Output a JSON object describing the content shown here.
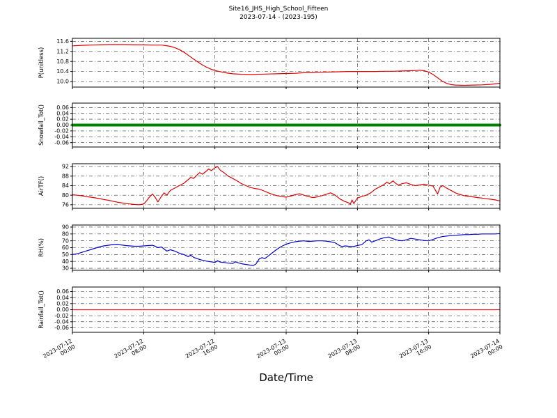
{
  "header": {
    "title": "Site16_JHS_High_School_Fifteen",
    "subtitle": "2023-07-14 - (2023-195)"
  },
  "chart_data": {
    "type": "line",
    "title": "Site16_JHS_High_School_Fifteen",
    "subtitle": "2023-07-14 - (2023-195)",
    "xlabel": "Date/Time",
    "x_unit": "hours since 2023-07-12 00:00",
    "xlim": [
      0,
      48
    ],
    "x_ticks": [
      0,
      8,
      16,
      24,
      32,
      40,
      48
    ],
    "x_tick_labels": [
      [
        "2023-07-12",
        "00:00"
      ],
      [
        "2023-07-12",
        "08:00"
      ],
      [
        "2023-07-12",
        "16:00"
      ],
      [
        "2023-07-13",
        "00:00"
      ],
      [
        "2023-07-13",
        "08:00"
      ],
      [
        "2023-07-13",
        "16:00"
      ],
      [
        "2023-07-14",
        "00:00"
      ]
    ],
    "grid": true,
    "panels": [
      {
        "ylabel": "P(unitless)",
        "color": "#dd0000",
        "linewidth": 1.2,
        "ylim": [
          9.78,
          11.72
        ],
        "yticks": [
          10.0,
          10.4,
          10.8,
          11.2,
          11.6
        ],
        "tick_decimals": 1,
        "points": [
          [
            0,
            11.42
          ],
          [
            1,
            11.44
          ],
          [
            2,
            11.45
          ],
          [
            3,
            11.46
          ],
          [
            4,
            11.47
          ],
          [
            5,
            11.47
          ],
          [
            6,
            11.47
          ],
          [
            7,
            11.46
          ],
          [
            8,
            11.46
          ],
          [
            9,
            11.45
          ],
          [
            10,
            11.45
          ],
          [
            10.5,
            11.43
          ],
          [
            11,
            11.4
          ],
          [
            11.5,
            11.35
          ],
          [
            12,
            11.27
          ],
          [
            12.5,
            11.17
          ],
          [
            13,
            11.05
          ],
          [
            13.5,
            10.92
          ],
          [
            14,
            10.8
          ],
          [
            14.5,
            10.68
          ],
          [
            15,
            10.58
          ],
          [
            15.5,
            10.5
          ],
          [
            16,
            10.44
          ],
          [
            17,
            10.36
          ],
          [
            18,
            10.31
          ],
          [
            19,
            10.29
          ],
          [
            20,
            10.28
          ],
          [
            21,
            10.29
          ],
          [
            22,
            10.3
          ],
          [
            23,
            10.31
          ],
          [
            24,
            10.32
          ],
          [
            25,
            10.33
          ],
          [
            26,
            10.35
          ],
          [
            27,
            10.36
          ],
          [
            28,
            10.37
          ],
          [
            29,
            10.38
          ],
          [
            30,
            10.39
          ],
          [
            31,
            10.4
          ],
          [
            32,
            10.4
          ],
          [
            33,
            10.4
          ],
          [
            34,
            10.4
          ],
          [
            35,
            10.41
          ],
          [
            36,
            10.41
          ],
          [
            37,
            10.42
          ],
          [
            38,
            10.43
          ],
          [
            38.5,
            10.44
          ],
          [
            39,
            10.45
          ],
          [
            39.5,
            10.43
          ],
          [
            40,
            10.38
          ],
          [
            40.5,
            10.28
          ],
          [
            41,
            10.15
          ],
          [
            41.5,
            10.02
          ],
          [
            42,
            9.93
          ],
          [
            42.5,
            9.88
          ],
          [
            43,
            9.86
          ],
          [
            44,
            9.85
          ],
          [
            45,
            9.86
          ],
          [
            46,
            9.87
          ],
          [
            47,
            9.89
          ],
          [
            48,
            9.93
          ]
        ]
      },
      {
        "ylabel": "Snowfall_Tot()",
        "color": "#008000",
        "linewidth": 4,
        "ylim": [
          -0.075,
          0.075
        ],
        "yticks": [
          -0.06,
          -0.04,
          -0.02,
          0.0,
          0.02,
          0.04,
          0.06
        ],
        "tick_decimals": 2,
        "points": [
          [
            0,
            0
          ],
          [
            48,
            0
          ]
        ]
      },
      {
        "ylabel": "AirTF()",
        "color": "#dd0000",
        "linewidth": 1.2,
        "ylim": [
          74.5,
          93.2
        ],
        "yticks": [
          76,
          80,
          84,
          88,
          92
        ],
        "tick_decimals": 0,
        "points": [
          [
            0,
            80.2
          ],
          [
            0.5,
            80.0
          ],
          [
            1,
            79.8
          ],
          [
            1.5,
            79.4
          ],
          [
            2,
            79.2
          ],
          [
            2.5,
            78.9
          ],
          [
            3,
            78.6
          ],
          [
            3.5,
            78.2
          ],
          [
            4,
            77.9
          ],
          [
            4.5,
            77.5
          ],
          [
            5,
            77.1
          ],
          [
            5.5,
            76.8
          ],
          [
            6,
            76.5
          ],
          [
            6.5,
            76.3
          ],
          [
            7,
            76.1
          ],
          [
            7.5,
            76.0
          ],
          [
            8,
            76.3
          ],
          [
            8.3,
            77.5
          ],
          [
            8.6,
            79.0
          ],
          [
            9,
            80.5
          ],
          [
            9.3,
            79.0
          ],
          [
            9.6,
            77.2
          ],
          [
            10,
            79.5
          ],
          [
            10.3,
            81.0
          ],
          [
            10.6,
            80.0
          ],
          [
            11,
            82.0
          ],
          [
            11.5,
            83.0
          ],
          [
            12,
            84.0
          ],
          [
            12.5,
            85.0
          ],
          [
            13,
            86.5
          ],
          [
            13.3,
            87.5
          ],
          [
            13.6,
            87.0
          ],
          [
            14,
            88.5
          ],
          [
            14.3,
            89.5
          ],
          [
            14.6,
            88.8
          ],
          [
            15,
            90.0
          ],
          [
            15.3,
            91.0
          ],
          [
            15.6,
            90.3
          ],
          [
            16,
            91.5
          ],
          [
            16.3,
            92.0
          ],
          [
            16.6,
            90.5
          ],
          [
            17,
            89.5
          ],
          [
            17.5,
            88.0
          ],
          [
            18,
            87.0
          ],
          [
            18.5,
            86.0
          ],
          [
            19,
            84.8
          ],
          [
            19.5,
            84.0
          ],
          [
            20,
            83.2
          ],
          [
            20.5,
            82.8
          ],
          [
            21,
            82.5
          ],
          [
            21.5,
            81.8
          ],
          [
            22,
            81.0
          ],
          [
            22.5,
            80.3
          ],
          [
            23,
            79.8
          ],
          [
            23.5,
            79.4
          ],
          [
            24,
            79.2
          ],
          [
            24.5,
            79.6
          ],
          [
            25,
            80.2
          ],
          [
            25.5,
            80.6
          ],
          [
            26,
            80.0
          ],
          [
            26.5,
            79.4
          ],
          [
            27,
            79.0
          ],
          [
            27.5,
            79.3
          ],
          [
            28,
            79.8
          ],
          [
            28.5,
            80.4
          ],
          [
            29,
            81.0
          ],
          [
            29.5,
            80.0
          ],
          [
            30,
            78.5
          ],
          [
            30.5,
            77.5
          ],
          [
            31,
            76.8
          ],
          [
            31.2,
            76.2
          ],
          [
            31.4,
            78.0
          ],
          [
            31.6,
            76.5
          ],
          [
            32,
            78.8
          ],
          [
            32.5,
            79.5
          ],
          [
            33,
            80.0
          ],
          [
            33.5,
            81.0
          ],
          [
            34,
            82.5
          ],
          [
            34.5,
            83.5
          ],
          [
            35,
            84.5
          ],
          [
            35.3,
            85.5
          ],
          [
            35.6,
            84.8
          ],
          [
            36,
            86.0
          ],
          [
            36.3,
            85.0
          ],
          [
            36.6,
            84.2
          ],
          [
            37,
            84.8
          ],
          [
            37.5,
            85.2
          ],
          [
            38,
            84.5
          ],
          [
            38.5,
            84.0
          ],
          [
            39,
            84.3
          ],
          [
            39.5,
            84.6
          ],
          [
            40,
            84.2
          ],
          [
            40.5,
            83.8
          ],
          [
            41,
            80.5
          ],
          [
            41.3,
            83.5
          ],
          [
            41.6,
            84.0
          ],
          [
            42,
            83.0
          ],
          [
            42.5,
            82.0
          ],
          [
            43,
            81.0
          ],
          [
            43.5,
            80.3
          ],
          [
            44,
            79.8
          ],
          [
            44.5,
            79.5
          ],
          [
            45,
            79.3
          ],
          [
            45.5,
            79.0
          ],
          [
            46,
            78.8
          ],
          [
            46.5,
            78.5
          ],
          [
            47,
            78.3
          ],
          [
            47.5,
            78.0
          ],
          [
            48,
            77.6
          ]
        ]
      },
      {
        "ylabel": "RH(%)",
        "color": "#0000cc",
        "linewidth": 1.2,
        "ylim": [
          27,
          93
        ],
        "yticks": [
          30,
          40,
          50,
          60,
          70,
          80,
          90
        ],
        "tick_decimals": 0,
        "points": [
          [
            0,
            50
          ],
          [
            0.5,
            51
          ],
          [
            1,
            53
          ],
          [
            1.5,
            55
          ],
          [
            2,
            57
          ],
          [
            2.5,
            59
          ],
          [
            3,
            61
          ],
          [
            3.5,
            62.5
          ],
          [
            4,
            63.5
          ],
          [
            4.5,
            64.5
          ],
          [
            5,
            65
          ],
          [
            5.5,
            64
          ],
          [
            6,
            63
          ],
          [
            6.5,
            62.5
          ],
          [
            7,
            62
          ],
          [
            7.5,
            62
          ],
          [
            8,
            62.5
          ],
          [
            8.5,
            63
          ],
          [
            9,
            63.5
          ],
          [
            9.3,
            62
          ],
          [
            9.6,
            60
          ],
          [
            10,
            61
          ],
          [
            10.3,
            58
          ],
          [
            10.6,
            55
          ],
          [
            11,
            57
          ],
          [
            11.5,
            55
          ],
          [
            12,
            52
          ],
          [
            12.5,
            50
          ],
          [
            13,
            47
          ],
          [
            13.3,
            49
          ],
          [
            13.6,
            46
          ],
          [
            14,
            44
          ],
          [
            14.5,
            42
          ],
          [
            15,
            40.5
          ],
          [
            15.5,
            39.5
          ],
          [
            16,
            38.5
          ],
          [
            16.3,
            41
          ],
          [
            16.6,
            39
          ],
          [
            17,
            38.5
          ],
          [
            17.5,
            37.5
          ],
          [
            18,
            37
          ],
          [
            18.3,
            39.5
          ],
          [
            18.6,
            38
          ],
          [
            19,
            36.5
          ],
          [
            19.5,
            35.5
          ],
          [
            20,
            34.5
          ],
          [
            20.3,
            34
          ],
          [
            20.6,
            36
          ],
          [
            21,
            44
          ],
          [
            21.3,
            45.5
          ],
          [
            21.6,
            44
          ],
          [
            22,
            48
          ],
          [
            22.5,
            53
          ],
          [
            23,
            58
          ],
          [
            23.5,
            62
          ],
          [
            24,
            65
          ],
          [
            24.5,
            67
          ],
          [
            25,
            68.5
          ],
          [
            25.5,
            69.5
          ],
          [
            26,
            70
          ],
          [
            26.5,
            69
          ],
          [
            27,
            69.5
          ],
          [
            27.5,
            70
          ],
          [
            28,
            70
          ],
          [
            28.5,
            69.5
          ],
          [
            29,
            68.5
          ],
          [
            29.5,
            67
          ],
          [
            30,
            63
          ],
          [
            30.3,
            61.5
          ],
          [
            30.6,
            62.5
          ],
          [
            31,
            62
          ],
          [
            31.5,
            61.5
          ],
          [
            32,
            63
          ],
          [
            32.5,
            64.5
          ],
          [
            33,
            70
          ],
          [
            33.3,
            71.5
          ],
          [
            33.6,
            68
          ],
          [
            34,
            70
          ],
          [
            34.5,
            72.5
          ],
          [
            35,
            74.5
          ],
          [
            35.5,
            75.5
          ],
          [
            36,
            73
          ],
          [
            36.5,
            71
          ],
          [
            37,
            70
          ],
          [
            37.5,
            71.5
          ],
          [
            38,
            73.5
          ],
          [
            38.5,
            72.5
          ],
          [
            39,
            71.5
          ],
          [
            39.5,
            70.5
          ],
          [
            40,
            70
          ],
          [
            40.5,
            72
          ],
          [
            41,
            74.5
          ],
          [
            41.5,
            76
          ],
          [
            42,
            77
          ],
          [
            42.5,
            77.5
          ],
          [
            43,
            78
          ],
          [
            43.5,
            78.5
          ],
          [
            44,
            79
          ],
          [
            44.5,
            79
          ],
          [
            45,
            79.5
          ],
          [
            45.5,
            79.5
          ],
          [
            46,
            80
          ],
          [
            46.5,
            80
          ],
          [
            47,
            80
          ],
          [
            47.5,
            80
          ],
          [
            48,
            80.5
          ]
        ]
      },
      {
        "ylabel": "Rainfall_Tot()",
        "color": "#ee2222",
        "linewidth": 1.2,
        "ylim": [
          -0.075,
          0.075
        ],
        "yticks": [
          -0.06,
          -0.04,
          -0.02,
          0.0,
          0.02,
          0.04,
          0.06
        ],
        "tick_decimals": 2,
        "points": [
          [
            0,
            0
          ],
          [
            48,
            0
          ]
        ]
      }
    ]
  }
}
